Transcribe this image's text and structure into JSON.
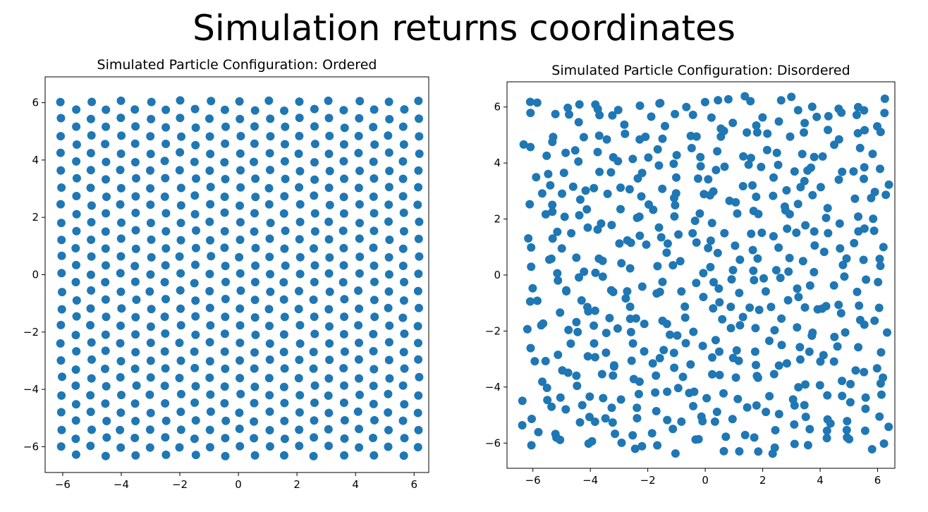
{
  "figure_title": "Simulation returns coordinates",
  "chart_data": [
    {
      "type": "scatter",
      "title": "Simulated Particle Configuration: Ordered",
      "xlabel": "",
      "ylabel": "",
      "xlim": [
        -6.6,
        6.5
      ],
      "ylim": [
        -6.9,
        6.9
      ],
      "xticks": [
        -6,
        -4,
        -2,
        0,
        2,
        4,
        6
      ],
      "yticks": [
        -6,
        -4,
        -2,
        0,
        2,
        4,
        6
      ],
      "xtick_labels": [
        "−6",
        "−4",
        "−2",
        "0",
        "2",
        "4",
        "6"
      ],
      "ytick_labels": [
        "−6",
        "−4",
        "−2",
        "0",
        "2",
        "4",
        "6"
      ],
      "grid": false,
      "marker_color": "#1f77b4",
      "lattice": {
        "columns": 25,
        "rows": 21,
        "x_start": -6.05,
        "x_end": 6.15,
        "y_top": 6.05,
        "y_bottom": -6.0,
        "row_offset": -0.3,
        "note": "hexagonal-like array of particles"
      }
    },
    {
      "type": "scatter",
      "title": "Simulated Particle Configuration: Disordered",
      "xlabel": "",
      "ylabel": "",
      "xlim": [
        -6.9,
        6.6
      ],
      "ylim": [
        -6.9,
        6.9
      ],
      "xticks": [
        -6,
        -4,
        -2,
        0,
        2,
        4,
        6
      ],
      "yticks": [
        -6,
        -4,
        -2,
        0,
        2,
        4,
        6
      ],
      "xtick_labels": [
        "−6",
        "−4",
        "−2",
        "0",
        "2",
        "4",
        "6"
      ],
      "ytick_labels": [
        "−6",
        "−4",
        "−2",
        "0",
        "2",
        "4",
        "6"
      ],
      "grid": false,
      "marker_color": "#1f77b4",
      "lattice": {
        "columns": 24,
        "rows": 22,
        "x_start": -6.1,
        "x_end": 6.1,
        "y_top": 6.1,
        "y_bottom": -6.1,
        "jitter": 0.3,
        "note": "randomized particle positions"
      }
    }
  ]
}
